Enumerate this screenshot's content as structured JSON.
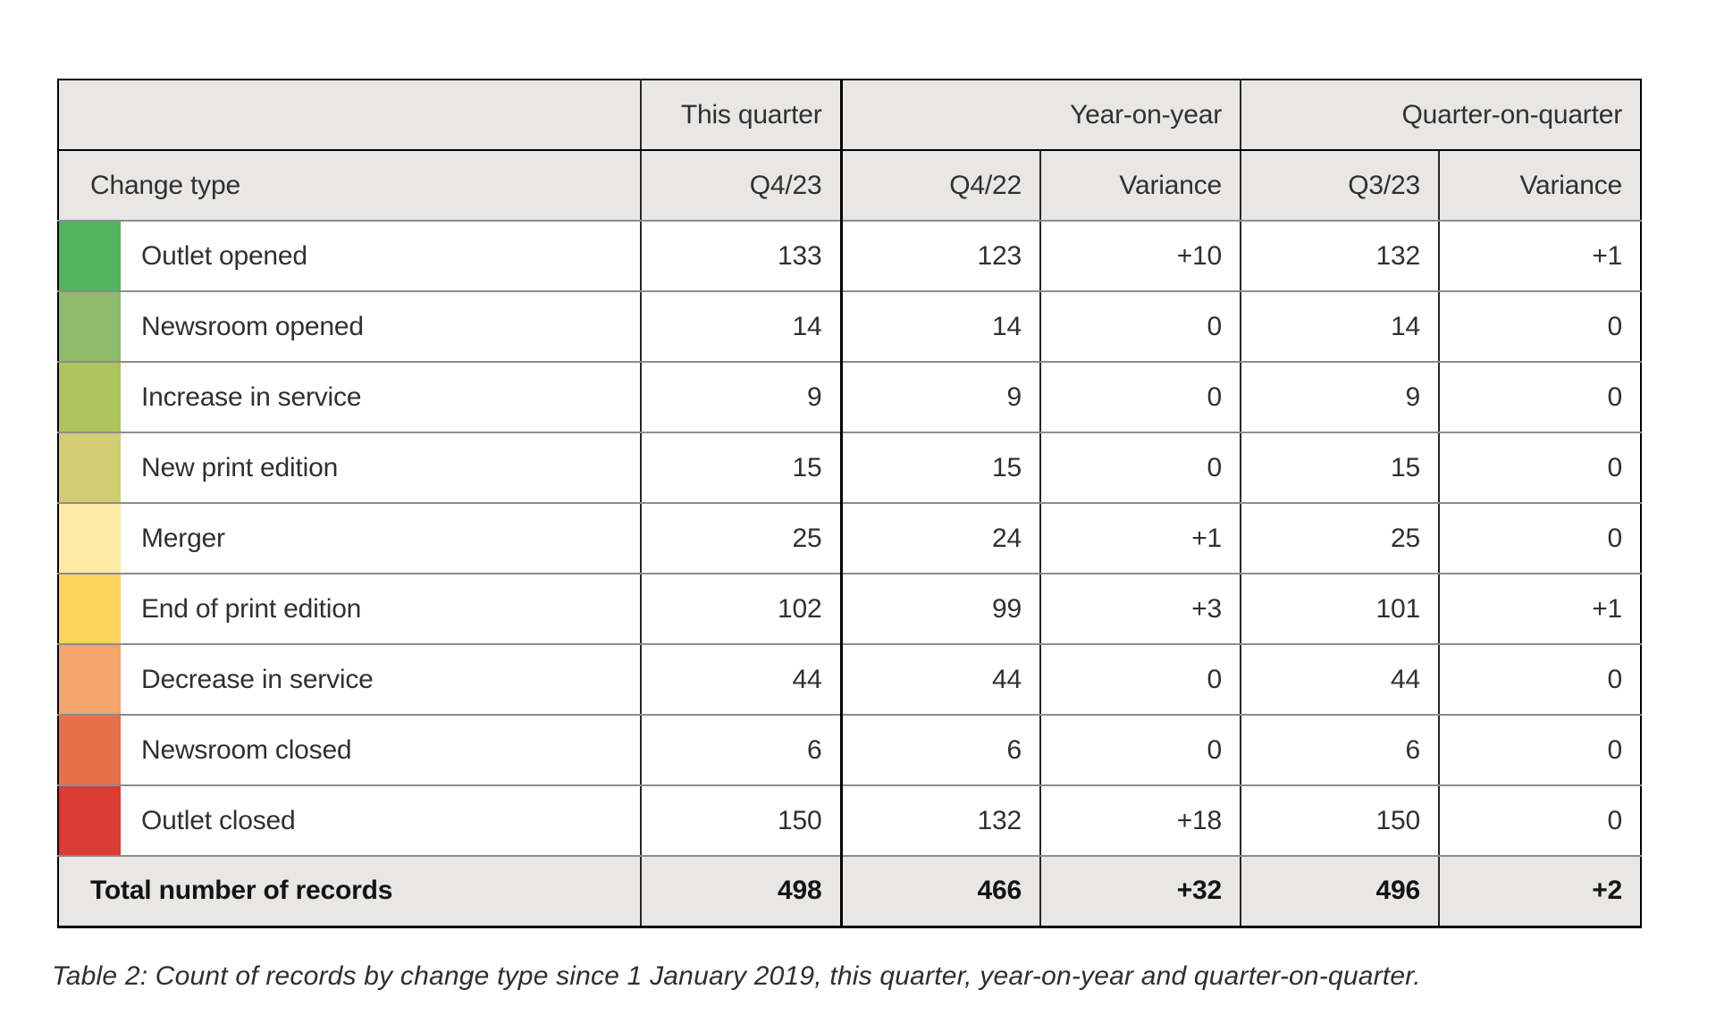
{
  "table": {
    "header_groups": {
      "this_quarter": "This quarter",
      "year_on_year": "Year-on-year",
      "quarter_on_quarter": "Quarter-on-quarter"
    },
    "columns": {
      "change_type": "Change type",
      "q4_23": "Q4/23",
      "q4_22": "Q4/22",
      "variance_yoy": "Variance",
      "q3_23": "Q3/23",
      "variance_qoq": "Variance"
    },
    "rows": [
      {
        "label": "Outlet opened",
        "color": "#53b45e",
        "q4_23": "133",
        "q4_22": "123",
        "variance_yoy": "+10",
        "q3_23": "132",
        "variance_qoq": "+1"
      },
      {
        "label": "Newsroom opened",
        "color": "#8dbd6b",
        "q4_23": "14",
        "q4_22": "14",
        "variance_yoy": "0",
        "q3_23": "14",
        "variance_qoq": "0"
      },
      {
        "label": "Increase in service",
        "color": "#afc35e",
        "q4_23": "9",
        "q4_22": "9",
        "variance_yoy": "0",
        "q3_23": "9",
        "variance_qoq": "0"
      },
      {
        "label": "New print edition",
        "color": "#d0cd72",
        "q4_23": "15",
        "q4_22": "15",
        "variance_yoy": "0",
        "q3_23": "15",
        "variance_qoq": "0"
      },
      {
        "label": "Merger",
        "color": "#fde9a4",
        "q4_23": "25",
        "q4_22": "24",
        "variance_yoy": "+1",
        "q3_23": "25",
        "variance_qoq": "0"
      },
      {
        "label": "End of print edition",
        "color": "#fdd45e",
        "q4_23": "102",
        "q4_22": "99",
        "variance_yoy": "+3",
        "q3_23": "101",
        "variance_qoq": "+1"
      },
      {
        "label": "Decrease in service",
        "color": "#f3a56c",
        "q4_23": "44",
        "q4_22": "44",
        "variance_yoy": "0",
        "q3_23": "44",
        "variance_qoq": "0"
      },
      {
        "label": "Newsroom closed",
        "color": "#e6704a",
        "q4_23": "6",
        "q4_22": "6",
        "variance_yoy": "0",
        "q3_23": "6",
        "variance_qoq": "0"
      },
      {
        "label": "Outlet closed",
        "color": "#dc3a33",
        "q4_23": "150",
        "q4_22": "132",
        "variance_yoy": "+18",
        "q3_23": "150",
        "variance_qoq": "0"
      }
    ],
    "total": {
      "label": "Total number of records",
      "q4_23": "498",
      "q4_22": "466",
      "variance_yoy": "+32",
      "q3_23": "496",
      "variance_qoq": "+2"
    }
  },
  "caption": "Table 2: Count of records by change type since 1 January 2019, this quarter, year-on-year and quarter-on-quarter."
}
